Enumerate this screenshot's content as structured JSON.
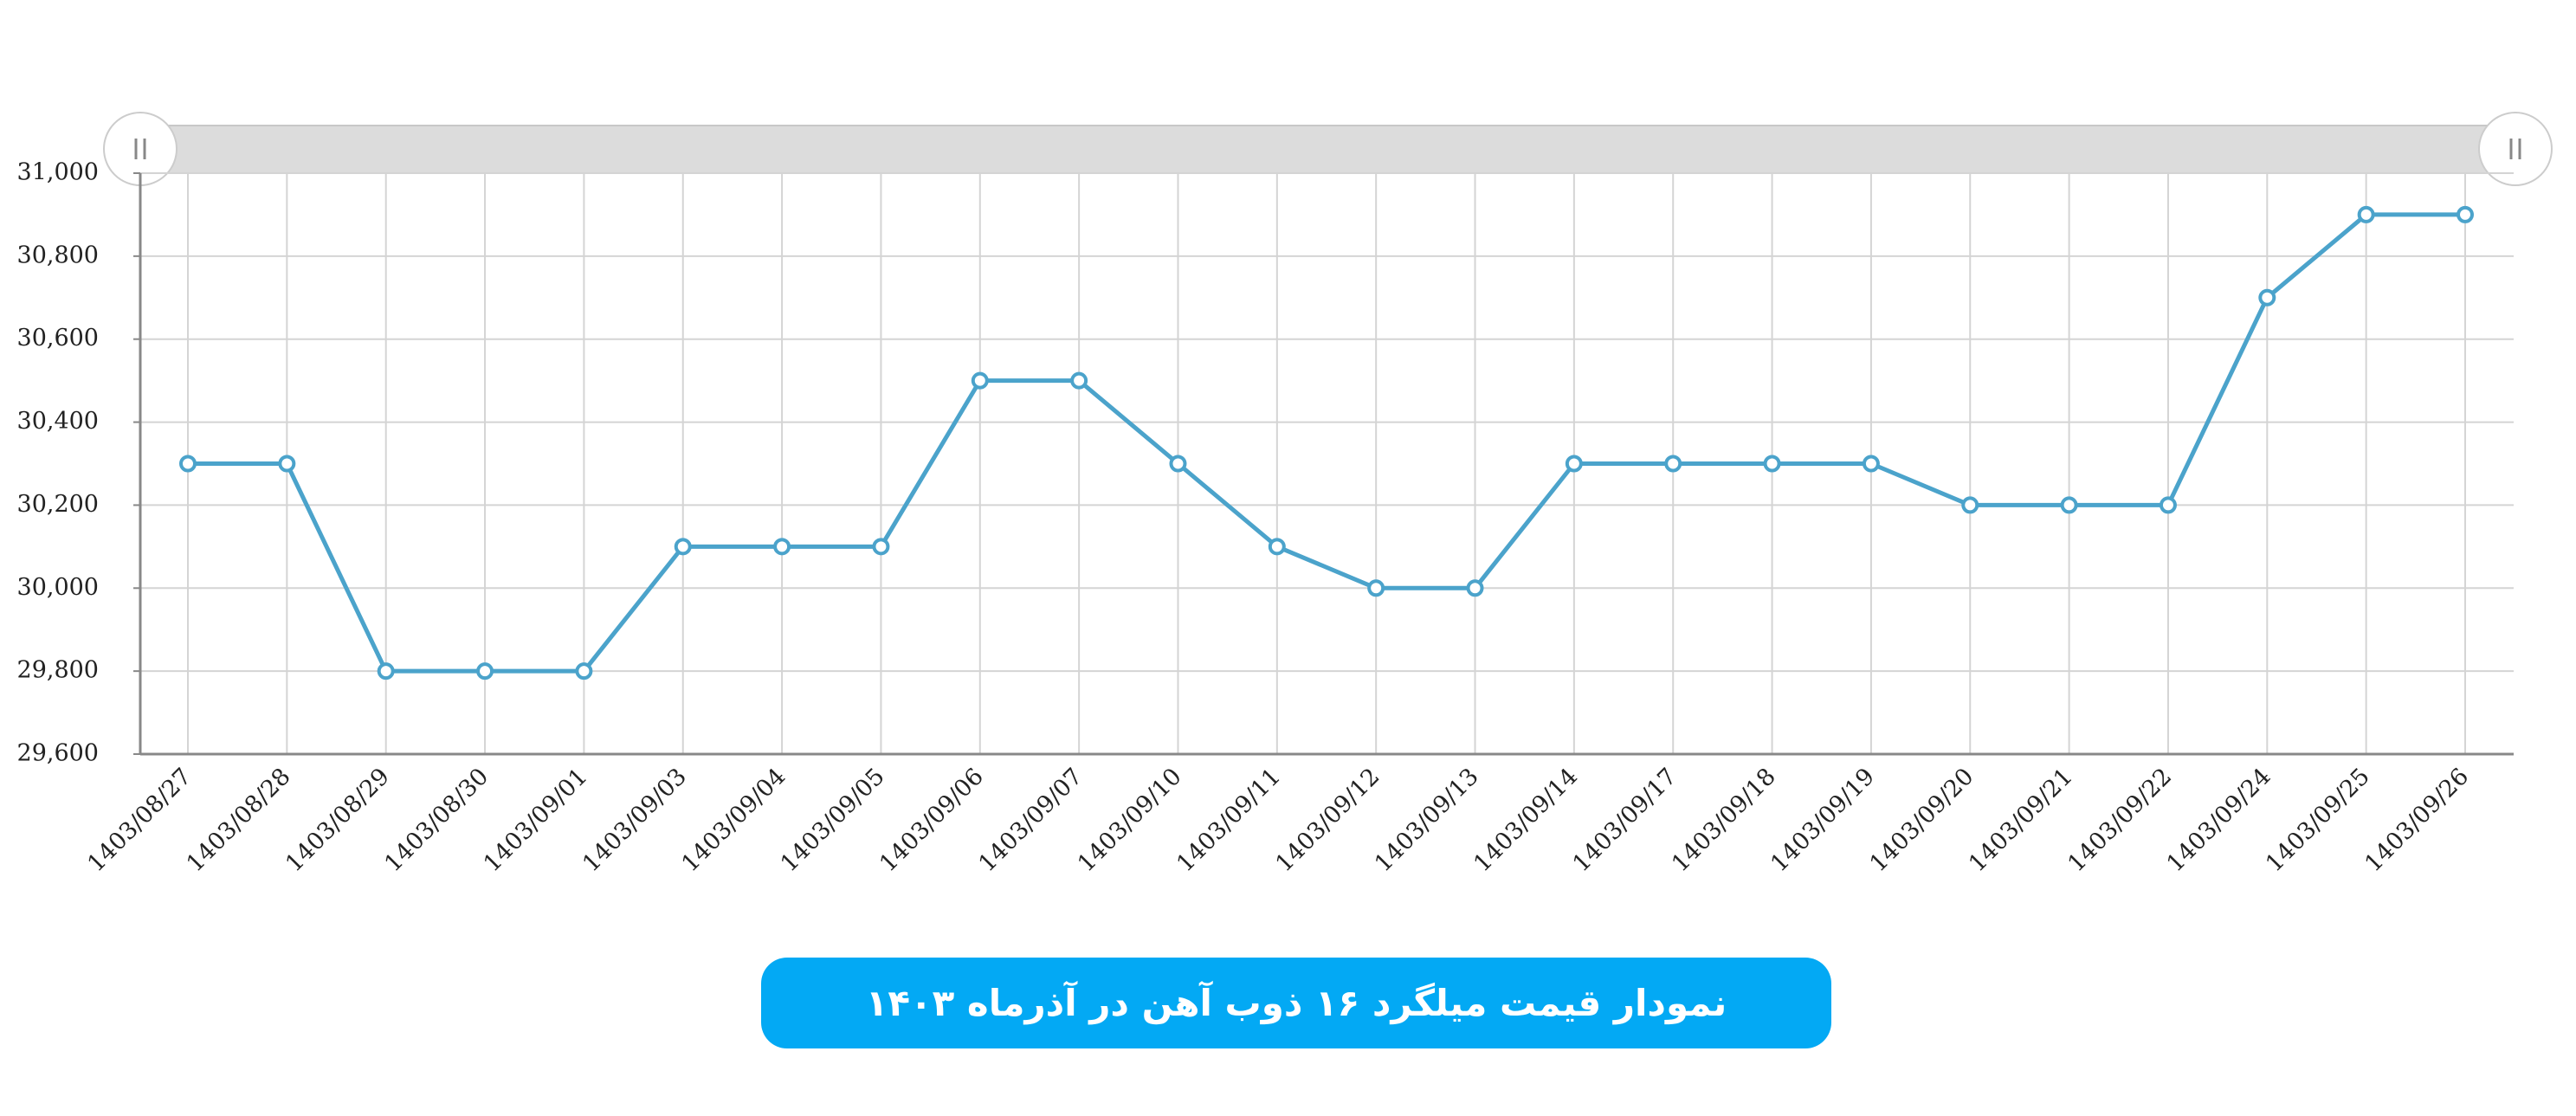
{
  "chart_data": {
    "type": "line",
    "title": "نمودار قیمت میلگرد ۱۶ ذوب آهن در آذرماه ۱۴۰۳",
    "categories": [
      "1403/08/27",
      "1403/08/28",
      "1403/08/29",
      "1403/08/30",
      "1403/09/01",
      "1403/09/03",
      "1403/09/04",
      "1403/09/05",
      "1403/09/06",
      "1403/09/07",
      "1403/09/10",
      "1403/09/11",
      "1403/09/12",
      "1403/09/13",
      "1403/09/14",
      "1403/09/17",
      "1403/09/18",
      "1403/09/19",
      "1403/09/20",
      "1403/09/21",
      "1403/09/22",
      "1403/09/24",
      "1403/09/25",
      "1403/09/26"
    ],
    "values": [
      30300,
      30300,
      29800,
      29800,
      29800,
      30100,
      30100,
      30100,
      30500,
      30500,
      30300,
      30100,
      30000,
      30000,
      30300,
      30300,
      30300,
      30300,
      30200,
      30200,
      30200,
      30700,
      30900,
      30900
    ],
    "color": "#4ba3cb",
    "ylim": [
      29600,
      31000
    ],
    "yticks": [
      {
        "value": 29600,
        "label": "29,600"
      },
      {
        "value": 29800,
        "label": "29,800"
      },
      {
        "value": 30000,
        "label": "30,000"
      },
      {
        "value": 30200,
        "label": "30,200"
      },
      {
        "value": 30400,
        "label": "30,400"
      },
      {
        "value": 30600,
        "label": "30,600"
      },
      {
        "value": 30800,
        "label": "30,800"
      },
      {
        "value": 31000,
        "label": "31,000"
      }
    ],
    "grid": true
  }
}
